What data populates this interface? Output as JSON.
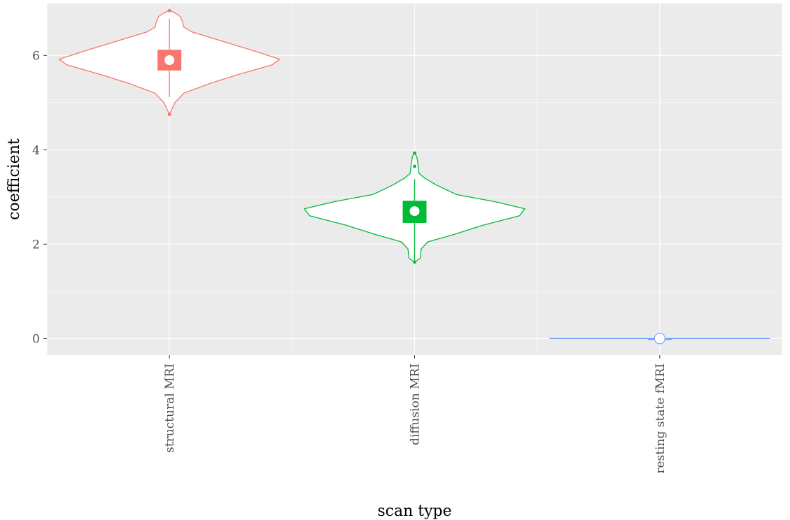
{
  "chart_data": {
    "type": "violin",
    "xlabel": "scan type",
    "ylabel": "coefficient",
    "categories": [
      "structural MRI",
      "diffusion MRI",
      "resting state fMRI"
    ],
    "ylim": [
      -0.35,
      7.1
    ],
    "yticks": [
      0,
      2,
      4,
      6
    ],
    "grid": true,
    "legend": "none",
    "colors": [
      "#F8766D",
      "#00BA38",
      "#619CFF"
    ],
    "groups": [
      {
        "category": "structural MRI",
        "color": "#F8766D",
        "min": 4.75,
        "max": 6.95,
        "q1": 5.68,
        "q3": 6.12,
        "median": 5.9,
        "whisker_low": 5.12,
        "whisker_high": 6.78,
        "outliers": [
          6.95,
          4.75
        ],
        "density_half_width": [
          [
            4.75,
            0.0
          ],
          [
            4.85,
            0.02
          ],
          [
            5.0,
            0.05
          ],
          [
            5.2,
            0.13
          ],
          [
            5.4,
            0.36
          ],
          [
            5.6,
            0.63
          ],
          [
            5.8,
            0.93
          ],
          [
            5.92,
            1.0
          ],
          [
            6.1,
            0.76
          ],
          [
            6.3,
            0.48
          ],
          [
            6.5,
            0.2
          ],
          [
            6.6,
            0.13
          ],
          [
            6.7,
            0.12
          ],
          [
            6.82,
            0.1
          ],
          [
            6.9,
            0.05
          ],
          [
            6.95,
            0.0
          ]
        ]
      },
      {
        "category": "diffusion MRI",
        "color": "#00BA38",
        "min": 1.62,
        "max": 3.93,
        "q1": 2.45,
        "q3": 2.92,
        "median": 2.7,
        "whisker_low": 1.65,
        "whisker_high": 3.38,
        "outliers": [
          3.93,
          3.65,
          1.62
        ],
        "density_half_width": [
          [
            1.62,
            0.0
          ],
          [
            1.7,
            0.05
          ],
          [
            1.9,
            0.06
          ],
          [
            2.05,
            0.12
          ],
          [
            2.2,
            0.35
          ],
          [
            2.4,
            0.62
          ],
          [
            2.6,
            0.95
          ],
          [
            2.75,
            1.0
          ],
          [
            2.9,
            0.73
          ],
          [
            3.05,
            0.38
          ],
          [
            3.25,
            0.2
          ],
          [
            3.4,
            0.09
          ],
          [
            3.5,
            0.04
          ],
          [
            3.7,
            0.03
          ],
          [
            3.85,
            0.02
          ],
          [
            3.93,
            0.0
          ]
        ]
      },
      {
        "category": "resting state fMRI",
        "color": "#619CFF",
        "min": 0.0,
        "max": 0.0,
        "q1": 0.0,
        "q3": 0.0,
        "median": 0.0,
        "whisker_low": 0.0,
        "whisker_high": 0.0,
        "outliers": [],
        "density_half_width": []
      }
    ]
  }
}
